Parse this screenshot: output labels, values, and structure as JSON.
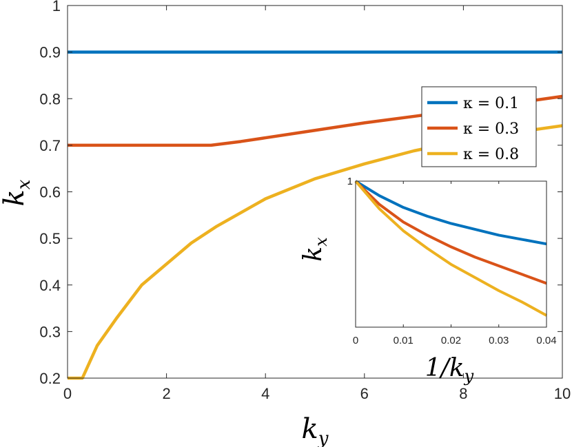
{
  "chart_data": [
    {
      "type": "line",
      "xlabel": "k_y",
      "ylabel": "k_x",
      "xlim": [
        0,
        10
      ],
      "ylim": [
        0.2,
        1
      ],
      "xticks": [
        "0",
        "2",
        "4",
        "6",
        "8",
        "10"
      ],
      "yticks": [
        "0.2",
        "0.3",
        "0.4",
        "0.5",
        "0.6",
        "0.7",
        "0.8",
        "0.9",
        "1"
      ],
      "grid": false,
      "legend": "top-right",
      "series": [
        {
          "name": "κ = 0.1",
          "color": "#0072BD",
          "x": [
            0,
            2,
            4,
            6,
            8,
            10
          ],
          "y": [
            0.9,
            0.9,
            0.9,
            0.9,
            0.9,
            0.9
          ]
        },
        {
          "name": "κ = 0.3",
          "color": "#D95319",
          "x": [
            0,
            1,
            2,
            2.9,
            3.5,
            4,
            5,
            6,
            7,
            8,
            9,
            10
          ],
          "y": [
            0.7,
            0.7,
            0.7,
            0.7,
            0.708,
            0.716,
            0.732,
            0.748,
            0.762,
            0.776,
            0.79,
            0.805
          ]
        },
        {
          "name": "κ = 0.8",
          "color": "#EDB120",
          "x": [
            0,
            0.3,
            0.6,
            1,
            1.5,
            2,
            2.5,
            3,
            4,
            5,
            6,
            7,
            8,
            9,
            10
          ],
          "y": [
            0.2,
            0.2,
            0.27,
            0.33,
            0.4,
            0.445,
            0.49,
            0.525,
            0.585,
            0.628,
            0.66,
            0.688,
            0.71,
            0.727,
            0.742
          ]
        }
      ]
    },
    {
      "type": "line",
      "xlabel": "1/k_y",
      "ylabel": "k_x",
      "xlim": [
        0,
        0.04
      ],
      "ylim": [
        0,
        1
      ],
      "xticks": [
        "0",
        "0.01",
        "0.02",
        "0.03",
        "0.04"
      ],
      "yticks": [
        "1"
      ],
      "grid": false,
      "series": [
        {
          "color": "#0072BD",
          "x": [
            0,
            0.005,
            0.01,
            0.015,
            0.02,
            0.025,
            0.03,
            0.035,
            0.04
          ],
          "y": [
            1,
            0.9,
            0.82,
            0.76,
            0.71,
            0.67,
            0.63,
            0.6,
            0.57
          ]
        },
        {
          "color": "#D95319",
          "x": [
            0,
            0.005,
            0.01,
            0.015,
            0.02,
            0.025,
            0.03,
            0.035,
            0.04
          ],
          "y": [
            1,
            0.84,
            0.72,
            0.63,
            0.55,
            0.48,
            0.42,
            0.36,
            0.3
          ]
        },
        {
          "color": "#EDB120",
          "x": [
            0,
            0.005,
            0.01,
            0.015,
            0.02,
            0.025,
            0.03,
            0.035,
            0.04
          ],
          "y": [
            1,
            0.81,
            0.66,
            0.54,
            0.43,
            0.34,
            0.25,
            0.17,
            0.08
          ]
        }
      ]
    }
  ]
}
